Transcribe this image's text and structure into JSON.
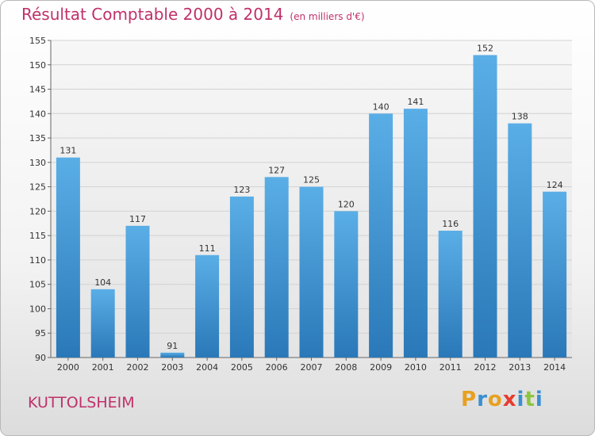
{
  "chart_data": {
    "type": "bar",
    "title": "Résultat Comptable 2000 à 2014",
    "subtitle": "(en milliers d'€)",
    "categories": [
      "2000",
      "2001",
      "2002",
      "2003",
      "2004",
      "2005",
      "2006",
      "2007",
      "2008",
      "2009",
      "2010",
      "2011",
      "2012",
      "2013",
      "2014"
    ],
    "values": [
      131,
      104,
      117,
      91,
      111,
      123,
      127,
      125,
      120,
      140,
      141,
      116,
      152,
      138,
      124
    ],
    "ylim": [
      90,
      155
    ],
    "yticks": [
      90,
      95,
      100,
      105,
      110,
      115,
      120,
      125,
      130,
      135,
      140,
      145,
      150,
      155
    ],
    "grid": true,
    "bar_color_top": "#5aaee6",
    "bar_color_bottom": "#2a78b8"
  },
  "place_name": "KUTTOLSHEIM",
  "logo": {
    "letters": [
      "P",
      "r",
      "o",
      "x",
      "i",
      "t",
      "i"
    ],
    "colors": [
      "#e8a020",
      "#3a8fd0",
      "#e8a020",
      "#e83a30",
      "#3a8fd0",
      "#8cc63f",
      "#3a8fd0"
    ]
  }
}
